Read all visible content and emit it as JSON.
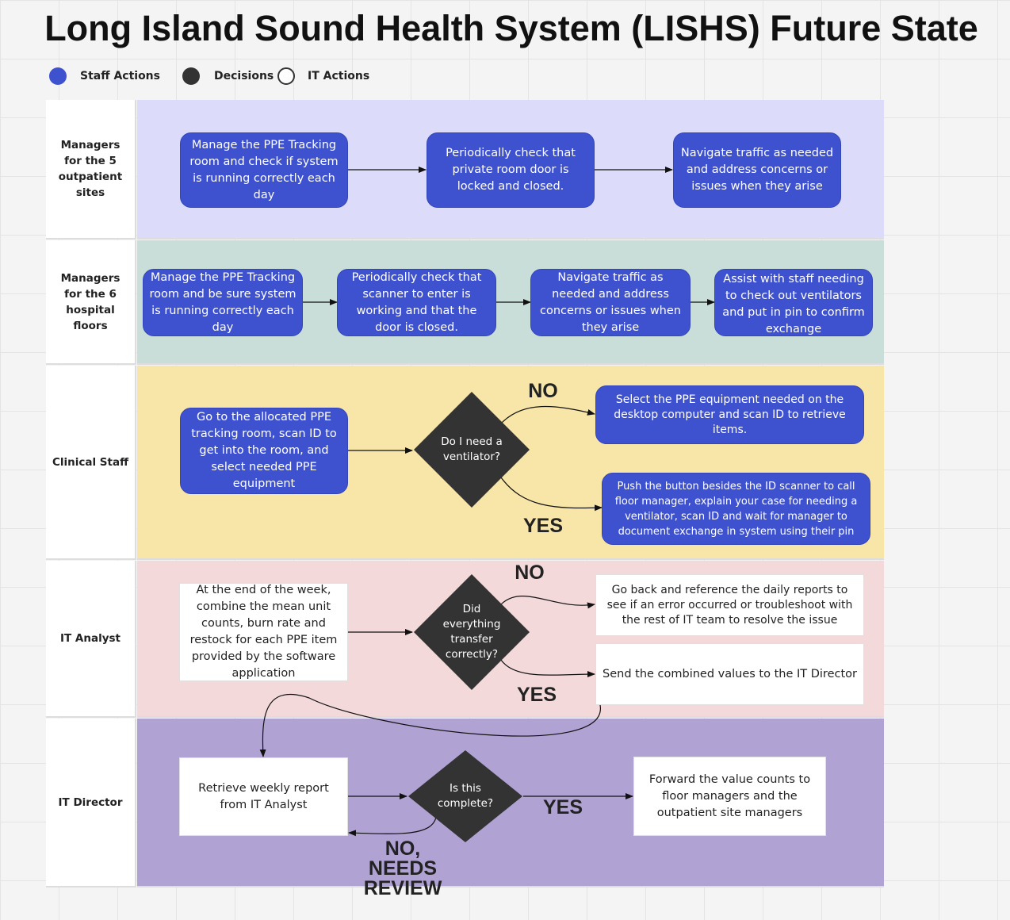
{
  "title": "Long Island Sound Health System (LISHS) Future State",
  "legend": [
    {
      "label": "Staff Actions",
      "color": "#3e52d0"
    },
    {
      "label": "Decisions",
      "color": "#333333"
    },
    {
      "label": "IT Actions",
      "color": "#ffffff"
    }
  ],
  "lanes": [
    {
      "label": "Managers for the 5 outpatient sites",
      "color": "#dcdcfa"
    },
    {
      "label": "Managers for the 6 hospital floors",
      "color": "#c9ded8"
    },
    {
      "label": "Clinical Staff",
      "color": "#f8e6a8"
    },
    {
      "label": "IT Analyst",
      "color": "#f3d9da"
    },
    {
      "label": "IT Director",
      "color": "#b1a2d4"
    }
  ],
  "nodes": {
    "out1": "Manage the PPE Tracking room and check if system is running correctly each day",
    "out2": "Periodically check that private room door is locked and closed.",
    "out3": "Navigate traffic as needed and address concerns or issues when they arise",
    "hosp1": "Manage the PPE Tracking room and be sure system is running correctly each day",
    "hosp2": "Periodically check that scanner to enter is working and that the door is closed.",
    "hosp3": "Navigate traffic as needed and address concerns or issues when they arise",
    "hosp4": "Assist with staff needing to check out ventilators and put in pin to confirm exchange",
    "clin1": "Go to the allocated PPE tracking room, scan ID to get into the room, and select needed PPE equipment",
    "clin_decision": "Do I need a ventilator?",
    "clin_no": "Select the PPE equipment needed on the desktop computer and scan ID to retrieve items.",
    "clin_yes": "Push the button besides the ID scanner to call floor manager, explain your case for needing a ventilator, scan ID and wait for manager to document exchange in system using their pin",
    "ita1": "At the end of the week, combine the mean unit counts, burn rate and restock for each PPE item provided by the software application",
    "ita_decision": "Did everything transfer correctly?",
    "ita_no": "Go back and reference the daily reports to see if an error occurred or troubleshoot with the rest of IT team to resolve the issue",
    "ita_yes": "Send the combined values to the IT Director",
    "itd1": "Retrieve weekly report from IT Analyst",
    "itd_decision": "Is this complete?",
    "itd_yes": "Forward the value counts to floor managers and the outpatient site managers"
  },
  "edge_labels": {
    "clin_no": "NO",
    "clin_yes": "YES",
    "ita_no": "NO",
    "ita_yes": "YES",
    "itd_yes": "YES",
    "itd_no": "NO, NEEDS REVIEW"
  }
}
